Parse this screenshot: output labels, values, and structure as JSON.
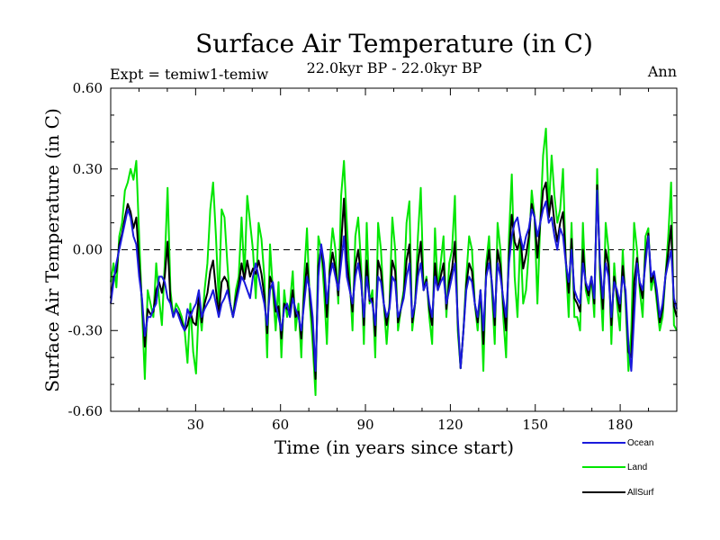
{
  "chart_data": {
    "type": "line",
    "title": "Surface Air Temperature (in C)",
    "subtitle": "22.0kyr BP - 22.0kyr BP",
    "left_label": "Expt = temiw1-temiw",
    "right_label": "Ann",
    "xlabel": "Time (in years since start)",
    "ylabel": "Surface Air Temperature (in C)",
    "xlim": [
      0,
      200
    ],
    "ylim": [
      -0.6,
      0.6
    ],
    "x_ticks": [
      30,
      60,
      90,
      120,
      150,
      180
    ],
    "y_ticks": [
      0.6,
      0.3,
      0.0,
      -0.3,
      -0.6
    ],
    "y_tick_labels": [
      "0.60",
      "0.30",
      "0.00",
      "-0.30",
      "-0.60"
    ],
    "zero_line": true,
    "series": [
      {
        "name": "Land",
        "color": "#00e600",
        "values": [
          -0.12,
          -0.05,
          -0.14,
          0.05,
          0.1,
          0.22,
          0.25,
          0.3,
          0.26,
          0.33,
          0.05,
          -0.22,
          -0.48,
          -0.15,
          -0.2,
          -0.25,
          -0.05,
          -0.18,
          -0.28,
          -0.05,
          0.23,
          -0.15,
          -0.25,
          -0.2,
          -0.22,
          -0.25,
          -0.3,
          -0.42,
          -0.2,
          -0.38,
          -0.46,
          -0.2,
          -0.3,
          -0.15,
          -0.05,
          0.15,
          0.25,
          0.05,
          -0.2,
          0.15,
          0.12,
          -0.05,
          -0.2,
          -0.25,
          -0.15,
          -0.1,
          0.12,
          -0.1,
          0.2,
          0.1,
          0.0,
          -0.18,
          0.1,
          0.04,
          -0.1,
          -0.4,
          0.02,
          -0.15,
          -0.3,
          -0.12,
          -0.4,
          -0.15,
          -0.25,
          -0.2,
          -0.08,
          -0.3,
          -0.2,
          -0.4,
          -0.1,
          0.08,
          -0.2,
          -0.35,
          -0.54,
          0.05,
          0.0,
          -0.15,
          -0.35,
          -0.05,
          0.08,
          0.0,
          -0.2,
          0.2,
          0.33,
          0.1,
          -0.1,
          -0.3,
          0.05,
          0.12,
          -0.05,
          -0.35,
          0.1,
          -0.2,
          -0.15,
          -0.4,
          0.1,
          0.0,
          -0.2,
          -0.35,
          -0.2,
          0.12,
          0.0,
          -0.3,
          -0.22,
          -0.15,
          0.1,
          0.18,
          -0.3,
          -0.2,
          0.05,
          0.23,
          -0.15,
          -0.1,
          -0.25,
          -0.35,
          0.08,
          -0.15,
          -0.05,
          0.05,
          -0.25,
          -0.05,
          0.0,
          0.2,
          -0.3,
          -0.44,
          -0.3,
          -0.1,
          0.05,
          0.0,
          -0.2,
          -0.3,
          -0.15,
          -0.45,
          -0.05,
          0.05,
          -0.15,
          -0.35,
          0.1,
          0.0,
          -0.25,
          -0.4,
          0.05,
          0.28,
          -0.1,
          -0.25,
          0.05,
          -0.2,
          -0.15,
          0.0,
          0.22,
          0.12,
          -0.2,
          0.1,
          0.35,
          0.45,
          0.15,
          0.35,
          0.2,
          0.1,
          0.15,
          0.3,
          -0.05,
          -0.25,
          0.1,
          -0.25,
          -0.25,
          -0.3,
          0.1,
          -0.15,
          -0.2,
          -0.1,
          -0.25,
          0.3,
          -0.1,
          -0.3,
          0.1,
          0.0,
          -0.35,
          -0.05,
          -0.2,
          -0.3,
          0.0,
          -0.2,
          -0.45,
          -0.3,
          0.1,
          0.0,
          -0.15,
          -0.25,
          0.05,
          0.08,
          -0.15,
          -0.1,
          -0.2,
          -0.3,
          -0.25,
          -0.1,
          0.05,
          0.25,
          -0.28,
          -0.3
        ],
        "_bind_names": "legend.land_label"
      },
      {
        "name": "Ocean",
        "color": "#1a1adc",
        "values": [
          -0.2,
          -0.12,
          -0.05,
          0.0,
          0.05,
          0.1,
          0.15,
          0.12,
          0.05,
          0.02,
          -0.1,
          -0.18,
          -0.32,
          -0.25,
          -0.25,
          -0.22,
          -0.2,
          -0.1,
          -0.1,
          -0.12,
          -0.18,
          -0.2,
          -0.25,
          -0.22,
          -0.25,
          -0.28,
          -0.3,
          -0.22,
          -0.25,
          -0.22,
          -0.2,
          -0.15,
          -0.25,
          -0.22,
          -0.2,
          -0.18,
          -0.15,
          -0.2,
          -0.25,
          -0.2,
          -0.18,
          -0.15,
          -0.2,
          -0.25,
          -0.2,
          -0.15,
          -0.1,
          -0.12,
          -0.15,
          -0.18,
          -0.1,
          -0.05,
          -0.1,
          -0.15,
          -0.2,
          -0.28,
          -0.15,
          -0.12,
          -0.2,
          -0.25,
          -0.3,
          -0.22,
          -0.2,
          -0.25,
          -0.18,
          -0.22,
          -0.25,
          -0.3,
          -0.2,
          -0.1,
          -0.15,
          -0.25,
          -0.45,
          -0.1,
          0.02,
          -0.05,
          -0.2,
          -0.1,
          -0.05,
          -0.1,
          -0.15,
          -0.05,
          0.05,
          -0.1,
          -0.15,
          -0.2,
          -0.1,
          -0.05,
          -0.12,
          -0.25,
          -0.1,
          -0.18,
          -0.2,
          -0.28,
          -0.1,
          -0.12,
          -0.2,
          -0.25,
          -0.22,
          -0.1,
          -0.12,
          -0.25,
          -0.22,
          -0.18,
          -0.1,
          -0.05,
          -0.25,
          -0.2,
          -0.1,
          -0.05,
          -0.15,
          -0.12,
          -0.2,
          -0.25,
          -0.1,
          -0.15,
          -0.12,
          -0.1,
          -0.2,
          -0.15,
          -0.1,
          -0.05,
          -0.25,
          -0.44,
          -0.3,
          -0.15,
          -0.1,
          -0.12,
          -0.2,
          -0.25,
          -0.15,
          -0.3,
          -0.1,
          -0.05,
          -0.12,
          -0.25,
          -0.05,
          -0.1,
          -0.18,
          -0.25,
          -0.05,
          0.05,
          0.1,
          0.12,
          0.05,
          0.0,
          0.05,
          0.08,
          0.15,
          0.12,
          0.05,
          0.1,
          0.15,
          0.18,
          0.1,
          0.12,
          0.05,
          0.0,
          0.08,
          0.05,
          -0.05,
          -0.12,
          0.0,
          -0.15,
          -0.18,
          -0.2,
          -0.05,
          -0.12,
          -0.15,
          -0.1,
          -0.18,
          0.22,
          -0.05,
          -0.18,
          -0.05,
          -0.1,
          -0.25,
          -0.12,
          -0.15,
          -0.2,
          -0.1,
          -0.15,
          -0.35,
          -0.45,
          -0.25,
          -0.05,
          -0.12,
          -0.15,
          -0.05,
          0.05,
          -0.1,
          -0.08,
          -0.15,
          -0.25,
          -0.2,
          -0.1,
          -0.05,
          0.0,
          -0.18,
          -0.22
        ],
        "_bind_names": "legend.ocean_label"
      },
      {
        "name": "AllSurf",
        "color": "#000000",
        "values": [
          -0.18,
          -0.1,
          -0.08,
          0.02,
          0.06,
          0.12,
          0.17,
          0.14,
          0.08,
          0.12,
          -0.05,
          -0.19,
          -0.36,
          -0.22,
          -0.24,
          -0.23,
          -0.15,
          -0.12,
          -0.16,
          -0.1,
          0.03,
          -0.19,
          -0.25,
          -0.22,
          -0.24,
          -0.27,
          -0.3,
          -0.28,
          -0.23,
          -0.27,
          -0.28,
          -0.17,
          -0.27,
          -0.2,
          -0.16,
          -0.08,
          -0.04,
          -0.15,
          -0.24,
          -0.12,
          -0.1,
          -0.12,
          -0.2,
          -0.25,
          -0.18,
          -0.13,
          -0.05,
          -0.11,
          -0.04,
          -0.1,
          -0.07,
          -0.09,
          -0.04,
          -0.09,
          -0.17,
          -0.31,
          -0.1,
          -0.13,
          -0.23,
          -0.21,
          -0.33,
          -0.2,
          -0.22,
          -0.23,
          -0.15,
          -0.25,
          -0.23,
          -0.33,
          -0.17,
          -0.05,
          -0.17,
          -0.28,
          -0.48,
          -0.06,
          0.01,
          -0.08,
          -0.25,
          -0.08,
          -0.01,
          -0.07,
          -0.17,
          0.02,
          0.19,
          -0.04,
          -0.14,
          -0.23,
          -0.06,
          0.0,
          -0.1,
          -0.28,
          -0.04,
          -0.19,
          -0.18,
          -0.32,
          -0.04,
          -0.08,
          -0.2,
          -0.28,
          -0.21,
          -0.04,
          -0.08,
          -0.27,
          -0.22,
          -0.17,
          -0.04,
          0.02,
          -0.27,
          -0.2,
          -0.05,
          0.03,
          -0.15,
          -0.11,
          -0.22,
          -0.28,
          -0.05,
          -0.15,
          -0.1,
          -0.05,
          -0.22,
          -0.12,
          -0.07,
          0.03,
          -0.27,
          -0.44,
          -0.3,
          -0.13,
          -0.05,
          -0.08,
          -0.2,
          -0.27,
          -0.15,
          -0.35,
          -0.08,
          0.0,
          -0.13,
          -0.28,
          0.0,
          -0.06,
          -0.2,
          -0.3,
          -0.02,
          0.13,
          0.03,
          0.0,
          0.05,
          -0.07,
          -0.02,
          0.05,
          0.17,
          0.12,
          -0.03,
          0.1,
          0.22,
          0.25,
          0.12,
          0.2,
          0.1,
          0.03,
          0.1,
          0.14,
          -0.04,
          -0.16,
          0.04,
          -0.18,
          -0.2,
          -0.23,
          0.0,
          -0.13,
          -0.17,
          -0.1,
          -0.2,
          0.24,
          -0.07,
          -0.22,
          0.0,
          -0.06,
          -0.28,
          -0.1,
          -0.17,
          -0.23,
          -0.06,
          -0.17,
          -0.38,
          -0.4,
          -0.12,
          -0.03,
          -0.13,
          -0.18,
          -0.02,
          0.06,
          -0.12,
          -0.09,
          -0.17,
          -0.27,
          -0.22,
          -0.1,
          -0.01,
          0.09,
          -0.21,
          -0.25
        ],
        "_bind_names": "legend.allsurf_label"
      }
    ]
  },
  "legend": {
    "ocean_label": "Ocean",
    "land_label": "Land",
    "allsurf_label": "AllSurf"
  }
}
